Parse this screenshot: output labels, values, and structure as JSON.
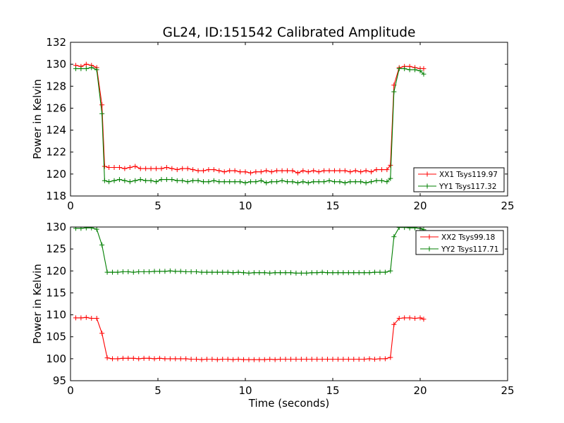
{
  "figure": {
    "title": "GL24, ID:151542 Calibrated Amplitude",
    "colors": {
      "red": "#ff0000",
      "green": "#007f00",
      "axis": "#000000"
    }
  },
  "chart_data": [
    {
      "type": "line",
      "title": "GL24, ID:151542 Calibrated Amplitude",
      "xlabel": "",
      "ylabel": "Power in Kelvin",
      "xlim": [
        0,
        25
      ],
      "ylim": [
        118,
        132
      ],
      "xticks": [
        0,
        5,
        10,
        15,
        20,
        25
      ],
      "yticks": [
        118,
        120,
        122,
        124,
        126,
        128,
        130,
        132
      ],
      "grid": false,
      "legend_position": "lower-right",
      "marker": "plus",
      "series": [
        {
          "name": "XX1 Tsys119.97",
          "color": "#ff0000",
          "x": [
            0.3,
            0.6,
            0.9,
            1.2,
            1.5,
            1.8,
            1.95,
            2.2,
            2.5,
            2.8,
            3.1,
            3.4,
            3.7,
            4.0,
            4.3,
            4.6,
            4.9,
            5.2,
            5.5,
            5.8,
            6.1,
            6.4,
            6.7,
            7.0,
            7.3,
            7.6,
            7.9,
            8.2,
            8.5,
            8.8,
            9.1,
            9.4,
            9.7,
            10.0,
            10.3,
            10.6,
            10.9,
            11.2,
            11.5,
            11.8,
            12.1,
            12.4,
            12.7,
            13.0,
            13.3,
            13.6,
            13.9,
            14.2,
            14.5,
            14.8,
            15.1,
            15.4,
            15.7,
            16.0,
            16.3,
            16.6,
            16.9,
            17.2,
            17.5,
            17.8,
            18.1,
            18.3,
            18.5,
            18.8,
            19.1,
            19.4,
            19.7,
            20.0,
            20.2
          ],
          "y": [
            129.9,
            129.8,
            130.0,
            129.9,
            129.7,
            126.3,
            120.7,
            120.6,
            120.6,
            120.6,
            120.5,
            120.6,
            120.7,
            120.5,
            120.5,
            120.5,
            120.5,
            120.5,
            120.6,
            120.5,
            120.4,
            120.5,
            120.5,
            120.4,
            120.3,
            120.3,
            120.4,
            120.4,
            120.3,
            120.2,
            120.3,
            120.3,
            120.2,
            120.2,
            120.1,
            120.2,
            120.2,
            120.3,
            120.2,
            120.3,
            120.3,
            120.3,
            120.3,
            120.1,
            120.3,
            120.2,
            120.3,
            120.2,
            120.3,
            120.3,
            120.3,
            120.3,
            120.3,
            120.2,
            120.3,
            120.2,
            120.3,
            120.2,
            120.4,
            120.4,
            120.4,
            120.8,
            128.1,
            129.7,
            129.8,
            129.8,
            129.7,
            129.6,
            129.6
          ]
        },
        {
          "name": "YY1 Tsys117.32",
          "color": "#007f00",
          "x": [
            0.3,
            0.6,
            0.9,
            1.2,
            1.5,
            1.8,
            1.95,
            2.2,
            2.5,
            2.8,
            3.1,
            3.4,
            3.7,
            4.0,
            4.3,
            4.6,
            4.9,
            5.2,
            5.5,
            5.8,
            6.1,
            6.4,
            6.7,
            7.0,
            7.3,
            7.6,
            7.9,
            8.2,
            8.5,
            8.8,
            9.1,
            9.4,
            9.7,
            10.0,
            10.3,
            10.6,
            10.9,
            11.2,
            11.5,
            11.8,
            12.1,
            12.4,
            12.7,
            13.0,
            13.3,
            13.6,
            13.9,
            14.2,
            14.5,
            14.8,
            15.1,
            15.4,
            15.7,
            16.0,
            16.3,
            16.6,
            16.9,
            17.2,
            17.5,
            17.8,
            18.1,
            18.3,
            18.5,
            18.8,
            19.1,
            19.4,
            19.7,
            20.0,
            20.2
          ],
          "y": [
            129.6,
            129.6,
            129.6,
            129.7,
            129.5,
            125.5,
            119.4,
            119.3,
            119.4,
            119.5,
            119.4,
            119.3,
            119.4,
            119.5,
            119.4,
            119.4,
            119.3,
            119.5,
            119.5,
            119.5,
            119.4,
            119.4,
            119.3,
            119.4,
            119.4,
            119.3,
            119.3,
            119.4,
            119.3,
            119.3,
            119.3,
            119.3,
            119.3,
            119.2,
            119.3,
            119.3,
            119.4,
            119.2,
            119.3,
            119.3,
            119.4,
            119.3,
            119.3,
            119.2,
            119.3,
            119.2,
            119.3,
            119.3,
            119.3,
            119.4,
            119.3,
            119.3,
            119.2,
            119.3,
            119.3,
            119.3,
            119.2,
            119.3,
            119.4,
            119.4,
            119.3,
            119.6,
            127.5,
            129.6,
            129.6,
            129.5,
            129.5,
            129.4,
            129.1
          ]
        }
      ]
    },
    {
      "type": "line",
      "title": "",
      "xlabel": "Time (seconds)",
      "ylabel": "Power in Kelvin",
      "xlim": [
        0,
        25
      ],
      "ylim": [
        95,
        130
      ],
      "xticks": [
        0,
        5,
        10,
        15,
        20,
        25
      ],
      "yticks": [
        95,
        100,
        105,
        110,
        115,
        120,
        125,
        130
      ],
      "grid": false,
      "legend_position": "upper-right",
      "marker": "plus",
      "series": [
        {
          "name": "XX2 Tsys99.18",
          "color": "#ff0000",
          "x": [
            0.3,
            0.6,
            0.9,
            1.2,
            1.5,
            1.8,
            2.1,
            2.4,
            2.7,
            3.0,
            3.3,
            3.6,
            3.9,
            4.2,
            4.5,
            4.8,
            5.1,
            5.4,
            5.7,
            6.0,
            6.3,
            6.6,
            6.9,
            7.2,
            7.5,
            7.8,
            8.1,
            8.4,
            8.7,
            9.0,
            9.3,
            9.6,
            9.9,
            10.2,
            10.5,
            10.8,
            11.1,
            11.4,
            11.7,
            12.0,
            12.3,
            12.6,
            12.9,
            13.2,
            13.5,
            13.8,
            14.1,
            14.4,
            14.7,
            15.0,
            15.3,
            15.6,
            15.9,
            16.2,
            16.5,
            16.8,
            17.1,
            17.4,
            17.7,
            18.0,
            18.3,
            18.5,
            18.8,
            19.1,
            19.4,
            19.7,
            20.0,
            20.2
          ],
          "y": [
            109.3,
            109.3,
            109.4,
            109.2,
            109.2,
            105.8,
            100.2,
            100.0,
            100.0,
            100.1,
            100.1,
            100.1,
            100.0,
            100.1,
            100.1,
            100.0,
            100.1,
            100.0,
            100.0,
            100.0,
            100.0,
            100.0,
            99.9,
            99.9,
            99.8,
            99.9,
            99.9,
            99.8,
            99.9,
            99.9,
            99.8,
            99.9,
            99.8,
            99.8,
            99.8,
            99.8,
            99.8,
            99.9,
            99.8,
            99.9,
            99.9,
            99.9,
            99.9,
            99.9,
            99.9,
            99.9,
            99.9,
            99.9,
            99.9,
            99.9,
            99.9,
            99.9,
            99.9,
            99.9,
            99.9,
            99.9,
            100.0,
            99.9,
            100.0,
            100.0,
            100.3,
            107.8,
            109.2,
            109.3,
            109.3,
            109.2,
            109.3,
            109.0
          ]
        },
        {
          "name": "YY2 Tsys117.71",
          "color": "#007f00",
          "x": [
            0.3,
            0.6,
            0.9,
            1.2,
            1.5,
            1.8,
            2.1,
            2.4,
            2.7,
            3.0,
            3.3,
            3.6,
            3.9,
            4.2,
            4.5,
            4.8,
            5.1,
            5.4,
            5.7,
            6.0,
            6.3,
            6.6,
            6.9,
            7.2,
            7.5,
            7.8,
            8.1,
            8.4,
            8.7,
            9.0,
            9.3,
            9.6,
            9.9,
            10.2,
            10.5,
            10.8,
            11.1,
            11.4,
            11.7,
            12.0,
            12.3,
            12.6,
            12.9,
            13.2,
            13.5,
            13.8,
            14.1,
            14.4,
            14.7,
            15.0,
            15.3,
            15.6,
            15.9,
            16.2,
            16.5,
            16.8,
            17.1,
            17.4,
            17.7,
            18.0,
            18.3,
            18.5,
            18.8,
            19.1,
            19.4,
            19.7,
            20.0,
            20.2
          ],
          "y": [
            129.7,
            129.7,
            129.8,
            129.8,
            129.5,
            125.9,
            119.7,
            119.7,
            119.7,
            119.8,
            119.8,
            119.7,
            119.8,
            119.8,
            119.8,
            119.9,
            119.9,
            119.9,
            120.0,
            119.9,
            119.9,
            119.8,
            119.8,
            119.8,
            119.7,
            119.7,
            119.7,
            119.7,
            119.7,
            119.7,
            119.6,
            119.7,
            119.6,
            119.5,
            119.6,
            119.6,
            119.6,
            119.5,
            119.6,
            119.6,
            119.6,
            119.6,
            119.5,
            119.5,
            119.5,
            119.6,
            119.6,
            119.7,
            119.6,
            119.6,
            119.6,
            119.6,
            119.6,
            119.6,
            119.6,
            119.6,
            119.6,
            119.7,
            119.7,
            119.7,
            120.0,
            127.8,
            129.9,
            129.9,
            129.8,
            129.8,
            129.7,
            129.4
          ]
        }
      ]
    }
  ]
}
